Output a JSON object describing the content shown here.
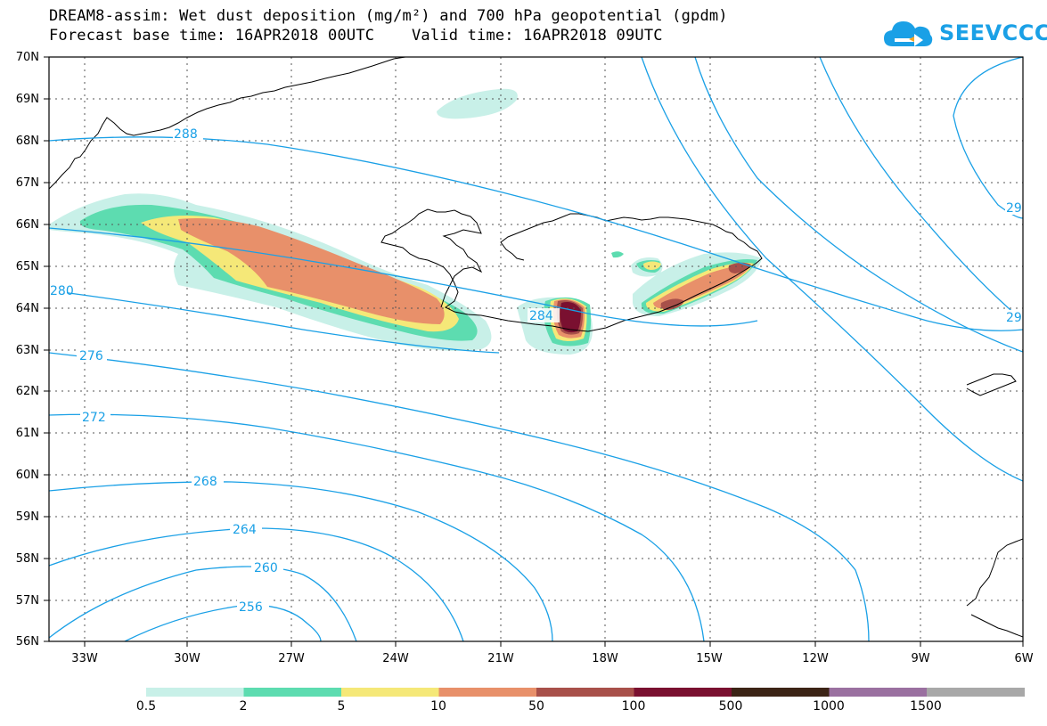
{
  "title": {
    "line1": "DREAM8-assim: Wet dust deposition (mg/m²) and 700 hPa geopotential (gpdm)",
    "line2": "Forecast base time: 16APR2018 00UTC    Valid time: 16APR2018 09UTC"
  },
  "logo": {
    "text": "SEEVCCC",
    "icon": "cloud-arrow-icon",
    "color": "#1aa0e6"
  },
  "map": {
    "lat_labels": [
      "70N",
      "69N",
      "68N",
      "67N",
      "66N",
      "65N",
      "64N",
      "63N",
      "62N",
      "61N",
      "60N",
      "59N",
      "58N",
      "57N",
      "56N"
    ],
    "lon_labels": [
      "33W",
      "30W",
      "27W",
      "24W",
      "21W",
      "18W",
      "15W",
      "12W",
      "9W",
      "6W"
    ],
    "contour_color": "#1aa0e6",
    "contour_labels": [
      "288",
      "280",
      "276",
      "272",
      "268",
      "264",
      "260",
      "256",
      "284",
      "29",
      "29"
    ]
  },
  "colorbar": {
    "labels": [
      "0.5",
      "2",
      "5",
      "10",
      "50",
      "100",
      "500",
      "1000",
      "1500"
    ],
    "colors": [
      "#c8f0e8",
      "#5ddcb0",
      "#f5e878",
      "#e8906a",
      "#a8504a",
      "#7a1030",
      "#3c2416",
      "#9a70a0",
      "#a8a8a8"
    ]
  }
}
